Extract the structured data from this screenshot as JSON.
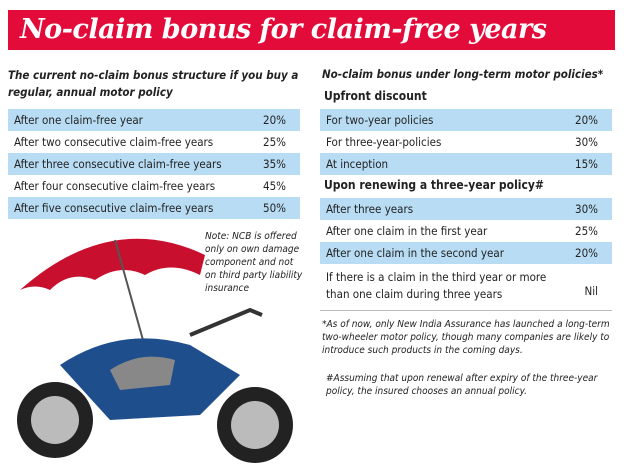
{
  "title": "No-claim bonus for claim-free years",
  "left": {
    "heading": "The current no-claim bonus structure if you buy a regular, annual motor policy",
    "rows": [
      {
        "label": "After one claim-free year",
        "value": "20%"
      },
      {
        "label": "After two consecutive claim-free years",
        "value": "25%"
      },
      {
        "label": "After three consecutive claim-free years",
        "value": "35%"
      },
      {
        "label": "After four consecutive claim-free years",
        "value": "45%"
      },
      {
        "label": "After five consecutive claim-free years",
        "value": "50%"
      }
    ],
    "note": "Note: NCB is offered only on own damage component and not on third party liability insurance"
  },
  "right": {
    "heading": "No-claim bonus under long-term motor policies*",
    "upfront_title": "Upfront discount",
    "upfront": [
      {
        "label": "For two-year policies",
        "value": "20%"
      },
      {
        "label": "For three-year-policies",
        "value": "30%"
      },
      {
        "label": "At inception",
        "value": "15%"
      }
    ],
    "renew_title": "Upon renewing a three-year policy#",
    "renew": [
      {
        "label": "After three years",
        "value": "30%"
      },
      {
        "label": "After one claim in the first year",
        "value": "25%"
      },
      {
        "label": "After one claim in the second year",
        "value": "20%"
      },
      {
        "label": "If there is a claim in the third year or more than one claim during three years",
        "value": "Nil"
      }
    ],
    "footnote1": "*As of now, only New India Assurance has launched a long-term two-wheeler motor policy, though many companies are likely to introduce such products in the coming days.",
    "footnote2": "#Assuming that upon renewal after expiry of the three-year policy, the insured chooses an annual policy."
  },
  "colors": {
    "title_bg": "#e30b3a",
    "row_highlight": "#b7dcf3"
  }
}
